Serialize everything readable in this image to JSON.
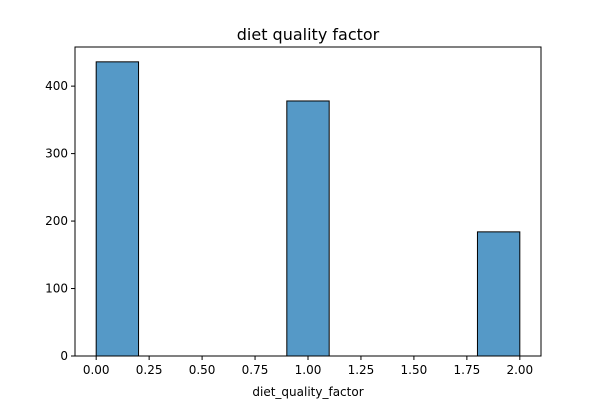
{
  "chart_data": {
    "type": "bar",
    "title": "diet quality factor",
    "xlabel": "diet_quality_factor",
    "ylabel": "",
    "xlim": [
      -0.1,
      2.1
    ],
    "ylim": [
      0,
      458
    ],
    "bin_width": 0.2,
    "bars": [
      {
        "x_start": 0.0,
        "x_end": 0.2,
        "value": 436
      },
      {
        "x_start": 0.9,
        "x_end": 1.1,
        "value": 378
      },
      {
        "x_start": 1.8,
        "x_end": 2.0,
        "value": 184
      }
    ],
    "x_ticks": [
      "0.00",
      "0.25",
      "0.50",
      "0.75",
      "1.00",
      "1.25",
      "1.50",
      "1.75",
      "2.00"
    ],
    "y_ticks": [
      "0",
      "100",
      "200",
      "300",
      "400"
    ],
    "bar_color": "#5599c7",
    "bar_edge_color": "#000000",
    "grid": false,
    "legend": "none"
  }
}
